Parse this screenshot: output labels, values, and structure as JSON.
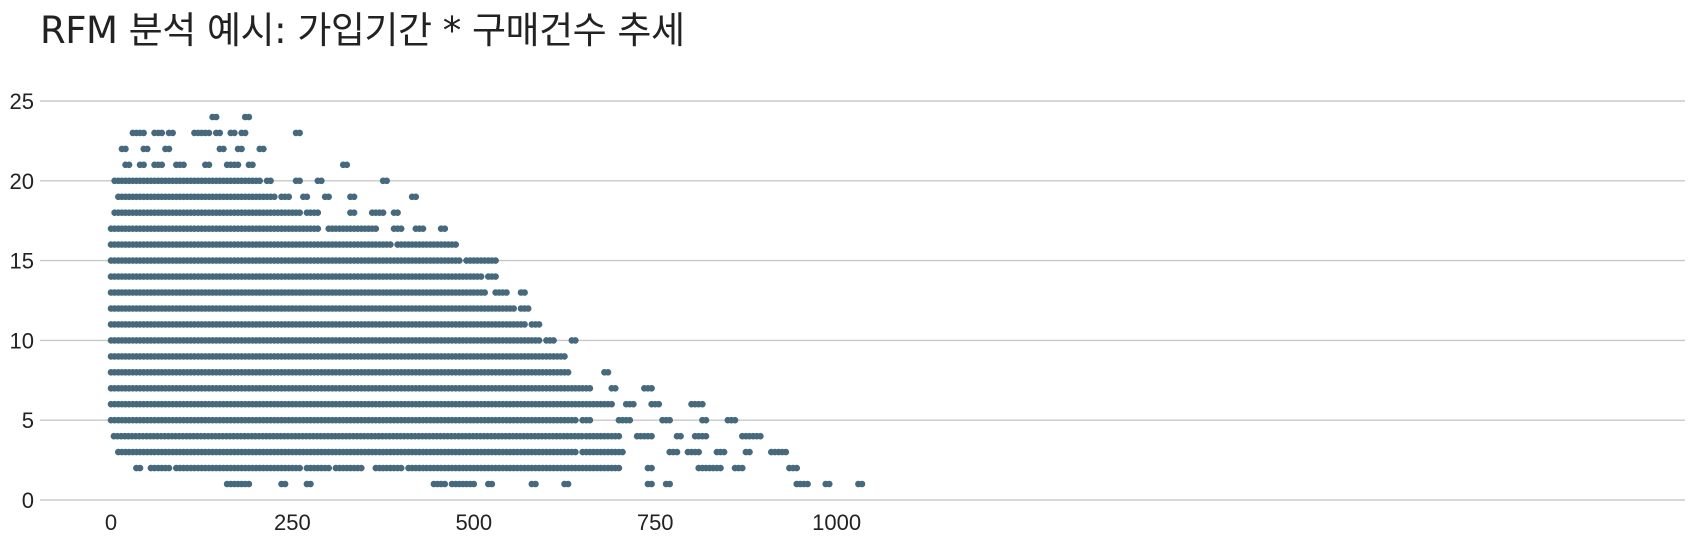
{
  "chart_data": {
    "type": "scatter",
    "title": "RFM 분석 예시: 가입기간 * 구매건수 추세",
    "xlabel": "",
    "ylabel": "",
    "x_ticks": [
      0,
      250,
      500,
      750,
      1000
    ],
    "y_ticks": [
      0,
      5,
      10,
      15,
      20,
      25
    ],
    "xlim": [
      -50,
      1080
    ],
    "ylim": [
      0,
      25
    ],
    "grid": "horizontal",
    "point_color": "#46697d",
    "rows": [
      {
        "y": 1,
        "runs": [
          [
            160,
            190
          ],
          [
            235,
            240
          ],
          [
            270,
            275
          ],
          [
            445,
            460
          ],
          [
            470,
            500
          ],
          [
            520,
            525
          ],
          [
            580,
            585
          ],
          [
            625,
            630
          ],
          [
            740,
            745
          ],
          [
            765,
            770
          ],
          [
            945,
            960
          ],
          [
            985,
            990
          ],
          [
            1030,
            1035
          ]
        ]
      },
      {
        "y": 2,
        "runs": [
          [
            35,
            40
          ],
          [
            55,
            80
          ],
          [
            90,
            160
          ],
          [
            165,
            260
          ],
          [
            270,
            300
          ],
          [
            310,
            330
          ],
          [
            335,
            345
          ],
          [
            365,
            400
          ],
          [
            410,
            470
          ],
          [
            475,
            530
          ],
          [
            535,
            560
          ],
          [
            565,
            620
          ],
          [
            625,
            700
          ],
          [
            740,
            745
          ],
          [
            810,
            840
          ],
          [
            860,
            870
          ],
          [
            935,
            945
          ]
        ]
      },
      {
        "y": 3,
        "runs": [
          [
            10,
            560
          ],
          [
            565,
            640
          ],
          [
            650,
            705
          ],
          [
            770,
            780
          ],
          [
            795,
            810
          ],
          [
            835,
            845
          ],
          [
            875,
            880
          ],
          [
            910,
            930
          ]
        ]
      },
      {
        "y": 4,
        "runs": [
          [
            4,
            650
          ],
          [
            655,
            700
          ],
          [
            725,
            745
          ],
          [
            780,
            785
          ],
          [
            805,
            820
          ],
          [
            870,
            895
          ]
        ]
      },
      {
        "y": 5,
        "runs": [
          [
            0,
            640
          ],
          [
            650,
            660
          ],
          [
            700,
            715
          ],
          [
            760,
            770
          ],
          [
            815,
            820
          ],
          [
            850,
            860
          ]
        ]
      },
      {
        "y": 6,
        "runs": [
          [
            0,
            690
          ],
          [
            710,
            720
          ],
          [
            745,
            755
          ],
          [
            800,
            815
          ]
        ]
      },
      {
        "y": 7,
        "runs": [
          [
            0,
            660
          ],
          [
            690,
            695
          ],
          [
            735,
            745
          ]
        ]
      },
      {
        "y": 8,
        "runs": [
          [
            0,
            630
          ],
          [
            680,
            685
          ]
        ]
      },
      {
        "y": 9,
        "runs": [
          [
            0,
            625
          ]
        ]
      },
      {
        "y": 10,
        "runs": [
          [
            0,
            590
          ],
          [
            600,
            610
          ],
          [
            635,
            640
          ]
        ]
      },
      {
        "y": 11,
        "runs": [
          [
            0,
            570
          ],
          [
            580,
            590
          ]
        ]
      },
      {
        "y": 12,
        "runs": [
          [
            0,
            555
          ],
          [
            565,
            575
          ]
        ]
      },
      {
        "y": 13,
        "runs": [
          [
            0,
            515
          ],
          [
            530,
            545
          ],
          [
            565,
            570
          ]
        ]
      },
      {
        "y": 14,
        "runs": [
          [
            0,
            510
          ],
          [
            520,
            530
          ]
        ]
      },
      {
        "y": 15,
        "runs": [
          [
            0,
            480
          ],
          [
            490,
            530
          ]
        ]
      },
      {
        "y": 16,
        "runs": [
          [
            0,
            385
          ],
          [
            395,
            445
          ],
          [
            450,
            475
          ]
        ]
      },
      {
        "y": 17,
        "runs": [
          [
            0,
            285
          ],
          [
            300,
            365
          ],
          [
            390,
            400
          ],
          [
            420,
            430
          ],
          [
            455,
            460
          ]
        ]
      },
      {
        "y": 18,
        "runs": [
          [
            5,
            260
          ],
          [
            270,
            285
          ],
          [
            330,
            335
          ],
          [
            360,
            375
          ],
          [
            390,
            395
          ]
        ]
      },
      {
        "y": 19,
        "runs": [
          [
            10,
            225
          ],
          [
            235,
            245
          ],
          [
            265,
            270
          ],
          [
            295,
            300
          ],
          [
            330,
            335
          ],
          [
            415,
            420
          ]
        ]
      },
      {
        "y": 20,
        "runs": [
          [
            5,
            205
          ],
          [
            215,
            220
          ],
          [
            255,
            260
          ],
          [
            285,
            290
          ],
          [
            375,
            380
          ]
        ]
      },
      {
        "y": 21,
        "runs": [
          [
            20,
            25
          ],
          [
            40,
            45
          ],
          [
            60,
            70
          ],
          [
            90,
            100
          ],
          [
            130,
            135
          ],
          [
            160,
            165
          ],
          [
            170,
            175
          ],
          [
            190,
            195
          ],
          [
            320,
            325
          ]
        ]
      },
      {
        "y": 22,
        "runs": [
          [
            15,
            20
          ],
          [
            45,
            50
          ],
          [
            75,
            80
          ],
          [
            150,
            155
          ],
          [
            175,
            180
          ],
          [
            205,
            210
          ]
        ]
      },
      {
        "y": 23,
        "runs": [
          [
            30,
            35
          ],
          [
            40,
            45
          ],
          [
            60,
            70
          ],
          [
            80,
            85
          ],
          [
            115,
            120
          ],
          [
            125,
            135
          ],
          [
            145,
            150
          ],
          [
            165,
            170
          ],
          [
            180,
            185
          ],
          [
            255,
            260
          ]
        ]
      },
      {
        "y": 24,
        "runs": [
          [
            140,
            145
          ],
          [
            185,
            190
          ]
        ]
      }
    ]
  }
}
